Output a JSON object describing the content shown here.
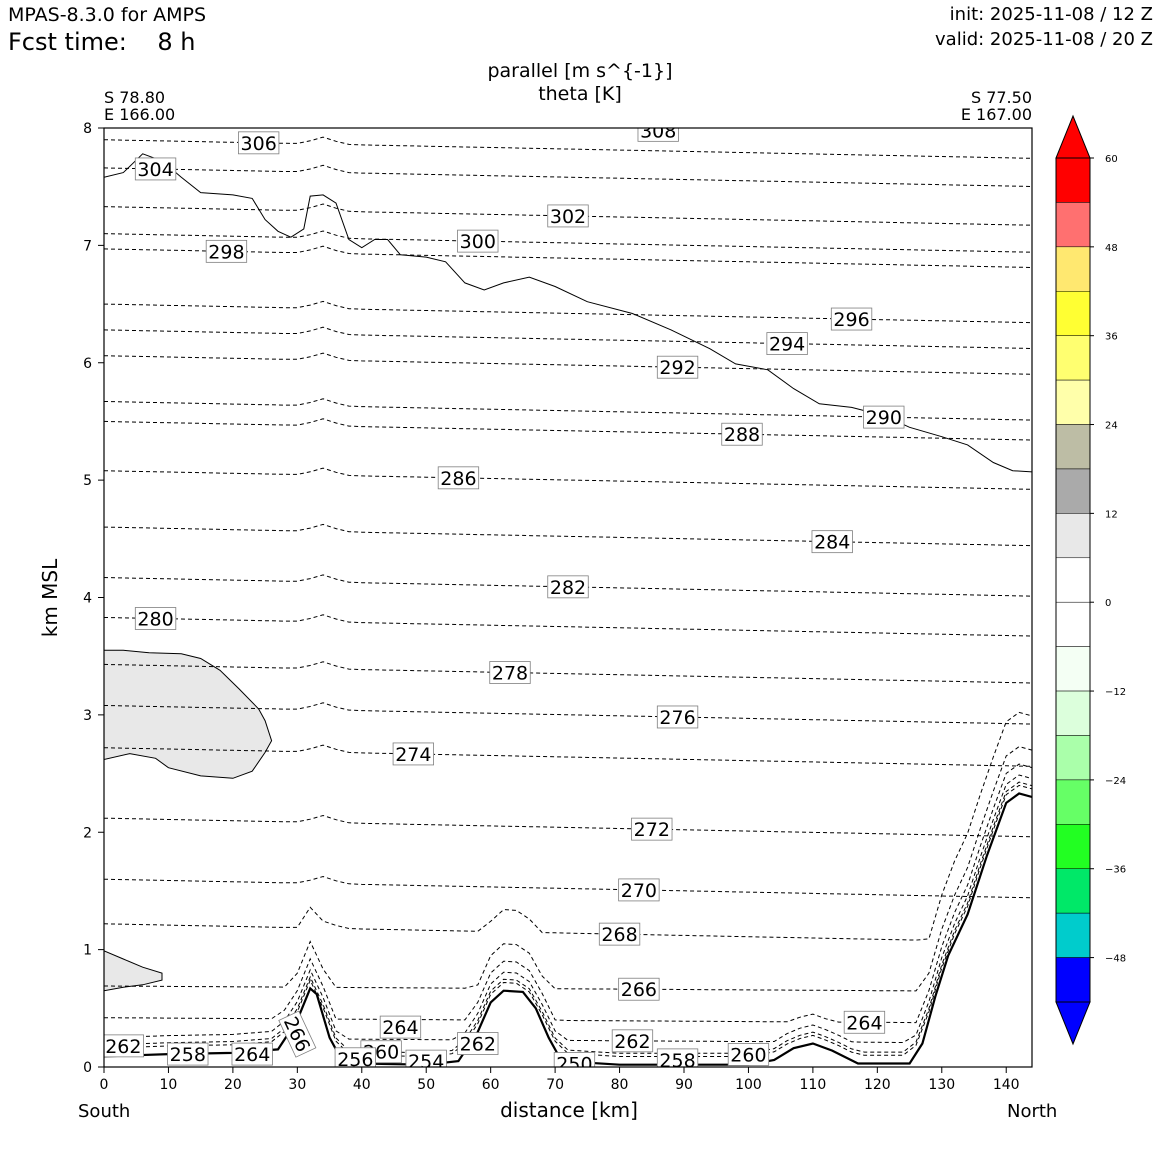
{
  "header": {
    "model": "MPAS-8.3.0 for AMPS",
    "fcst_label": "Fcst time:",
    "fcst_value": "8 h",
    "init": "init: 2025-11-08 / 12 Z",
    "valid": "valid: 2025-11-08 / 20 Z"
  },
  "section": {
    "start_lat": "S 78.80",
    "start_lon": "E 166.00",
    "end_lat": "S 77.50",
    "end_lon": "E 167.00",
    "left_end": "South",
    "right_end": "North"
  },
  "chart_data": {
    "type": "contour-cross-section",
    "title": "parallel [m s^{-1}]",
    "subtitle": "theta [K]",
    "xlabel": "distance [km]",
    "ylabel": "km MSL",
    "xlim": [
      0,
      144
    ],
    "ylim": [
      0,
      8
    ],
    "xticks": [
      0,
      10,
      20,
      30,
      40,
      50,
      60,
      70,
      80,
      90,
      100,
      110,
      120,
      130,
      140
    ],
    "yticks": [
      0,
      1,
      2,
      3,
      4,
      5,
      6,
      7,
      8
    ],
    "colorbar": {
      "ticks": [
        "60",
        "48",
        "36",
        "24",
        "12",
        "0",
        "−12",
        "−24",
        "−36",
        "−48"
      ],
      "levels": [
        60,
        54,
        48,
        42,
        36,
        30,
        24,
        18,
        12,
        6,
        0,
        -6,
        -12,
        -18,
        -24,
        -30,
        -36,
        -42,
        -48,
        -54,
        -60
      ],
      "colors": [
        "#ff0000",
        "#ff7070",
        "#ffe870",
        "#ffff33",
        "#ffff70",
        "#ffffaa",
        "#bdbda5",
        "#aaaaaa",
        "#e8e8e8",
        "#ffffff",
        "#ffffff",
        "#f4fff4",
        "#dcffdc",
        "#aaffaa",
        "#66ff66",
        "#22ff22",
        "#00e868",
        "#00cccc",
        "#0000ff"
      ],
      "over_color": "#ff0000",
      "under_color": "#0000ff"
    },
    "terrain": [
      [
        0,
        0.09
      ],
      [
        10,
        0.11
      ],
      [
        20,
        0.12
      ],
      [
        27,
        0.15
      ],
      [
        30,
        0.4
      ],
      [
        32,
        0.67
      ],
      [
        33,
        0.62
      ],
      [
        35,
        0.25
      ],
      [
        37,
        0.05
      ],
      [
        40,
        0.03
      ],
      [
        50,
        0.02
      ],
      [
        55,
        0.05
      ],
      [
        58,
        0.3
      ],
      [
        60,
        0.55
      ],
      [
        62,
        0.65
      ],
      [
        65,
        0.64
      ],
      [
        67,
        0.5
      ],
      [
        69,
        0.25
      ],
      [
        71,
        0.05
      ],
      [
        80,
        0.02
      ],
      [
        100,
        0.02
      ],
      [
        104,
        0.06
      ],
      [
        107,
        0.16
      ],
      [
        110,
        0.2
      ],
      [
        113,
        0.14
      ],
      [
        117,
        0.03
      ],
      [
        125,
        0.03
      ],
      [
        127,
        0.2
      ],
      [
        129,
        0.6
      ],
      [
        131,
        0.95
      ],
      [
        134,
        1.3
      ],
      [
        137,
        1.8
      ],
      [
        140,
        2.25
      ],
      [
        142,
        2.33
      ],
      [
        144,
        2.3
      ]
    ],
    "theta_levels": [
      {
        "value": 306,
        "z": 7.9,
        "label_x": 24,
        "show": true
      },
      {
        "value": 304,
        "z": 7.66,
        "label_x": 8,
        "show": true
      },
      {
        "value": 302,
        "z": 7.33,
        "label_x": 72,
        "show": true
      },
      {
        "value": 300,
        "z": 7.1,
        "label_x": 58,
        "show": true
      },
      {
        "value": 298,
        "z": 6.97,
        "label_x": 19,
        "show": true
      },
      {
        "value": 296,
        "z": 6.5,
        "label_x": 116,
        "show": true
      },
      {
        "value": 294,
        "z": 6.28,
        "label_x": 106,
        "show": true
      },
      {
        "value": 292,
        "z": 6.06,
        "label_x": 89,
        "show": true
      },
      {
        "value": 290,
        "z": 5.67,
        "label_x": 121,
        "show": true
      },
      {
        "value": 288,
        "z": 5.5,
        "label_x": 99,
        "show": true
      },
      {
        "value": 286,
        "z": 5.08,
        "label_x": 55,
        "show": true
      },
      {
        "value": 284,
        "z": 4.6,
        "label_x": 113,
        "show": true
      },
      {
        "value": 282,
        "z": 4.17,
        "label_x": 72,
        "show": true
      },
      {
        "value": 280,
        "z": 3.83,
        "label_x": 8,
        "show": true
      },
      {
        "value": 278,
        "z": 3.43,
        "label_x": 63,
        "show": true
      },
      {
        "value": 276,
        "z": 3.08,
        "label_x": 89,
        "show": true
      },
      {
        "value": 274,
        "z": 2.72,
        "label_x": 48,
        "show": true
      },
      {
        "value": 272,
        "z": 2.12,
        "label_x": 85,
        "show": true
      },
      {
        "value": 270,
        "z": 1.6,
        "label_x": 83,
        "show": true
      },
      {
        "value": 268,
        "z": 1.22,
        "label_x": 80,
        "show": true
      },
      {
        "value": 266,
        "z": 0.69,
        "label_x": 83,
        "show": true
      },
      {
        "value": 264,
        "z": 0.42,
        "label_x": 118,
        "show": true
      },
      {
        "value": 262,
        "z": 0.25,
        "label_x": 82,
        "show": true
      },
      {
        "value": 260,
        "z": 0.14,
        "label_x": 100,
        "show": true
      },
      {
        "value": 258,
        "z": 0.09,
        "label_x": 89,
        "show": true
      }
    ],
    "theta_labels_extra": [
      {
        "text": "308",
        "x": 86,
        "y": 7.98
      },
      {
        "text": "266",
        "x": 30,
        "y": 0.28,
        "rotate": 65
      },
      {
        "text": "264",
        "x": 46,
        "y": 0.34
      },
      {
        "text": "264",
        "x": 23,
        "y": 0.11
      },
      {
        "text": "262",
        "x": 58,
        "y": 0.2
      },
      {
        "text": "262",
        "x": 3,
        "y": 0.18
      },
      {
        "text": "260",
        "x": 43,
        "y": 0.13
      },
      {
        "text": "258",
        "x": 13,
        "y": 0.11
      },
      {
        "text": "256",
        "x": 39,
        "y": 0.07
      },
      {
        "text": "254",
        "x": 50,
        "y": 0.05
      },
      {
        "text": "250",
        "x": 73,
        "y": 0.03
      }
    ],
    "wind_zero_contour_top": [
      [
        0,
        7.58
      ],
      [
        3,
        7.62
      ],
      [
        6,
        7.78
      ],
      [
        9,
        7.72
      ],
      [
        12,
        7.58
      ],
      [
        15,
        7.45
      ],
      [
        20,
        7.43
      ],
      [
        23,
        7.4
      ],
      [
        25,
        7.22
      ],
      [
        27,
        7.12
      ],
      [
        29,
        7.07
      ],
      [
        31,
        7.14
      ],
      [
        32,
        7.42
      ],
      [
        34,
        7.43
      ],
      [
        36,
        7.36
      ],
      [
        38,
        7.05
      ],
      [
        40,
        6.98
      ],
      [
        42,
        7.05
      ],
      [
        44,
        7.05
      ],
      [
        46,
        6.92
      ],
      [
        50,
        6.9
      ],
      [
        53,
        6.86
      ],
      [
        56,
        6.68
      ],
      [
        59,
        6.62
      ],
      [
        62,
        6.68
      ],
      [
        66,
        6.73
      ],
      [
        70,
        6.65
      ],
      [
        75,
        6.52
      ],
      [
        82,
        6.42
      ],
      [
        88,
        6.28
      ],
      [
        94,
        6.12
      ],
      [
        98,
        5.99
      ],
      [
        103,
        5.94
      ],
      [
        107,
        5.78
      ],
      [
        111,
        5.65
      ],
      [
        116,
        5.62
      ],
      [
        121,
        5.55
      ],
      [
        125,
        5.45
      ],
      [
        130,
        5.37
      ],
      [
        134,
        5.3
      ],
      [
        138,
        5.15
      ],
      [
        141,
        5.08
      ],
      [
        144,
        5.07
      ]
    ],
    "wind_positive_region_1": [
      [
        0,
        3.55
      ],
      [
        3,
        3.55
      ],
      [
        7,
        3.53
      ],
      [
        12,
        3.52
      ],
      [
        15,
        3.48
      ],
      [
        18,
        3.38
      ],
      [
        21,
        3.22
      ],
      [
        24,
        3.05
      ],
      [
        25,
        2.95
      ],
      [
        26,
        2.78
      ],
      [
        25,
        2.68
      ],
      [
        23,
        2.52
      ],
      [
        20,
        2.46
      ],
      [
        15,
        2.48
      ],
      [
        10,
        2.55
      ],
      [
        8,
        2.63
      ],
      [
        4,
        2.67
      ],
      [
        0,
        2.62
      ]
    ],
    "wind_positive_region_2": [
      [
        0,
        0.99
      ],
      [
        3,
        0.92
      ],
      [
        6,
        0.85
      ],
      [
        9,
        0.8
      ],
      [
        9,
        0.74
      ],
      [
        6,
        0.7
      ],
      [
        3,
        0.68
      ],
      [
        0,
        0.65
      ]
    ]
  }
}
